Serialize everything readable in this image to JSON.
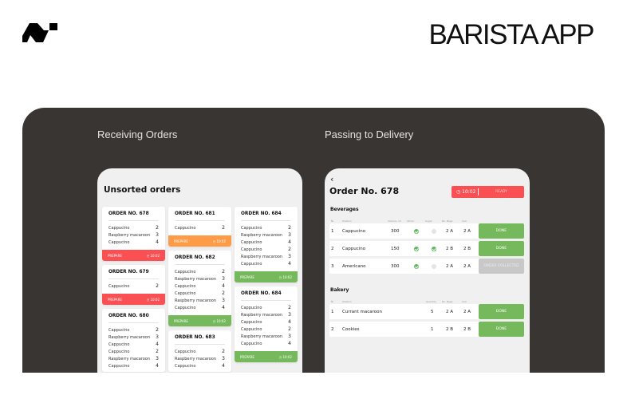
{
  "header": {
    "title": "BARISTA APP",
    "logo_icon": "brand-logo"
  },
  "sections": {
    "left": "Receiving Orders",
    "right": "Passing to Delivery"
  },
  "colors": {
    "panel": "#393532",
    "red": "#fb5053",
    "orange": "#fe9b46",
    "green": "#76b95c",
    "gray": "#c8c8c8"
  },
  "unsorted": {
    "title": "Unsorted orders",
    "columns": [
      [
        {
          "title": "ORDER NO. 678",
          "items": [
            [
              "Cappucino",
              "2"
            ],
            [
              "Raspberry macaroon",
              "3"
            ],
            [
              "Cappucino",
              "4"
            ]
          ],
          "status": "red",
          "action": "PREPARE",
          "time": "◷ 10:02"
        },
        {
          "title": "ORDER NO. 679",
          "items": [
            [
              "Cappucino",
              "2"
            ]
          ],
          "status": "red",
          "action": "PREPARE",
          "time": "◷ 10:02"
        },
        {
          "title": "ORDER NO. 680",
          "items": [
            [
              "Cappucino",
              "2"
            ],
            [
              "Raspberry macaroon",
              "3"
            ],
            [
              "Cappucino",
              "4"
            ],
            [
              "Cappucino",
              "2"
            ],
            [
              "Raspberry macaroon",
              "3"
            ],
            [
              "Cappucino",
              "4"
            ]
          ]
        }
      ],
      [
        {
          "title": "ORDER NO. 681",
          "items": [
            [
              "Cappucino",
              "2"
            ]
          ],
          "status": "orange",
          "action": "PREPARE",
          "time": "◷ 10:02"
        },
        {
          "title": "ORDER NO. 682",
          "items": [
            [
              "Cappucino",
              "2"
            ],
            [
              "Raspberry macaroon",
              "3"
            ],
            [
              "Cappucino",
              "4"
            ],
            [
              "Cappucino",
              "2"
            ],
            [
              "Raspberry macaroon",
              "3"
            ],
            [
              "Cappucino",
              "4"
            ]
          ],
          "status": "green",
          "action": "PREPARE",
          "time": "◷ 10:02"
        },
        {
          "title": "ORDER NO. 683",
          "items": [
            [
              "Cappucino",
              "2"
            ],
            [
              "Raspberry macaroon",
              "3"
            ],
            [
              "Cappucino",
              "4"
            ]
          ]
        }
      ],
      [
        {
          "title": "ORDER NO. 684",
          "items": [
            [
              "Cappucino",
              "2"
            ],
            [
              "Raspberry macaroon",
              "3"
            ],
            [
              "Cappucino",
              "4"
            ],
            [
              "Cappucino",
              "2"
            ],
            [
              "Raspberry macaroon",
              "3"
            ],
            [
              "Cappucino",
              "4"
            ]
          ],
          "status": "green",
          "action": "PREPARE",
          "time": "◷ 10:02"
        },
        {
          "title": "ORDER NO. 684",
          "items": [
            [
              "Cappucino",
              "2"
            ],
            [
              "Raspberry macaroon",
              "3"
            ],
            [
              "Cappucino",
              "4"
            ],
            [
              "Cappucino",
              "2"
            ],
            [
              "Raspberry macaroon",
              "3"
            ],
            [
              "Cappucino",
              "4"
            ]
          ],
          "status": "green",
          "action": "PREPARE",
          "time": "◷ 10:02"
        }
      ]
    ]
  },
  "order": {
    "back_icon": "chevron-left",
    "title": "Order No. 678",
    "time": "◷ 10:02",
    "ready_label": "READY",
    "beverages": {
      "title": "Beverages",
      "headers": [
        "№",
        "Position",
        "Volume, ml",
        "Stirrer",
        "Sugar",
        "No. Bags",
        "Cell"
      ],
      "rows": [
        {
          "n": "1",
          "pos": "Cappucino",
          "vol": "300",
          "stirrer": true,
          "sugar": false,
          "bags": "2 A",
          "cell": "2 A",
          "action": "DONE",
          "state": "green"
        },
        {
          "n": "2",
          "pos": "Cappucino",
          "vol": "150",
          "stirrer": true,
          "sugar": true,
          "bags": "2 B",
          "cell": "2 B",
          "action": "DONE",
          "state": "green"
        },
        {
          "n": "3",
          "pos": "Americano",
          "vol": "300",
          "stirrer": true,
          "sugar": false,
          "bags": "2 A",
          "cell": "2 A",
          "action": "ORDER COLLECTED",
          "state": "gray"
        }
      ]
    },
    "bakery": {
      "title": "Bakery",
      "headers": [
        "№",
        "Position",
        "Quantity",
        "No. Bags",
        "Cell"
      ],
      "rows": [
        {
          "n": "1",
          "pos": "Currant macaroon",
          "qty": "5",
          "bags": "2 A",
          "cell": "2 A",
          "action": "DONE",
          "state": "green"
        },
        {
          "n": "2",
          "pos": "Cookies",
          "qty": "1",
          "bags": "2 B",
          "cell": "2 B",
          "action": "DONE",
          "state": "green"
        }
      ]
    }
  }
}
